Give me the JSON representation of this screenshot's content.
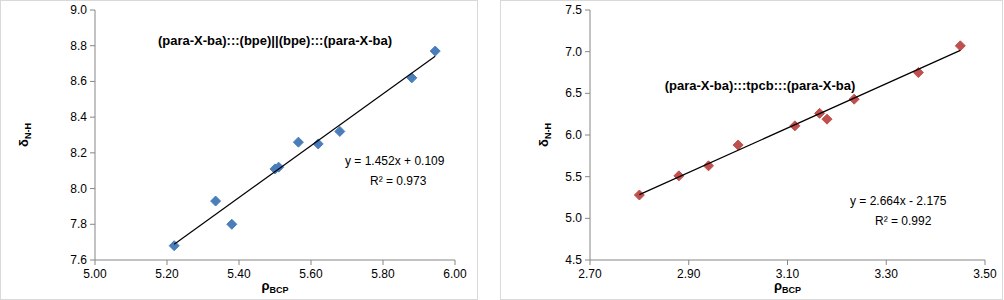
{
  "chart_data": [
    {
      "type": "scatter",
      "title": "(para-X-ba):::(bpe)||(bpe):::(para-X-ba)",
      "x_label": {
        "main": "ρ",
        "sub": "BCP"
      },
      "y_label": {
        "main": "δ",
        "sub": "N-H"
      },
      "annotations": [
        "y = 1.452x + 0.109",
        "R² = 0.973"
      ],
      "xlim": [
        5.0,
        6.0
      ],
      "xticks": [
        {
          "value": 5.0,
          "label": "5.00"
        },
        {
          "value": 5.2,
          "label": "5.20"
        },
        {
          "value": 5.4,
          "label": "5.40"
        },
        {
          "value": 5.6,
          "label": "5.60"
        },
        {
          "value": 5.8,
          "label": "5.80"
        },
        {
          "value": 6.0,
          "label": "6.00"
        }
      ],
      "ylim": [
        7.6,
        9.0
      ],
      "yticks": [
        7.6,
        7.8,
        {
          "value": 8.0,
          "label": "8.0"
        },
        8.2,
        8.4,
        8.6,
        8.8,
        {
          "value": 9.0,
          "label": "9.0"
        }
      ],
      "grid": false,
      "series": [
        {
          "type": "scatter",
          "marker": "diamond",
          "color": "#4a7ebb",
          "x": [
            5.22,
            5.335,
            5.38,
            5.5,
            5.51,
            5.565,
            5.62,
            5.68,
            5.88,
            5.945
          ],
          "values": [
            7.68,
            7.93,
            7.8,
            8.11,
            8.12,
            8.26,
            8.25,
            8.32,
            8.62,
            8.77
          ]
        },
        {
          "type": "line",
          "line_style": "solid",
          "color": "#000000",
          "x": [
            5.22,
            5.945
          ],
          "values": [
            7.688,
            8.741
          ]
        }
      ]
    },
    {
      "type": "scatter",
      "title": "(para-X-ba):::tpcb:::(para-X-ba)",
      "x_label": {
        "main": "ρ",
        "sub": "BCP"
      },
      "y_label": {
        "main": "δ",
        "sub": "N-H"
      },
      "annotations": [
        "y = 2.664x - 2.175",
        "R² = 0.992"
      ],
      "xlim": [
        2.7,
        3.5
      ],
      "xticks": [
        {
          "value": 2.7,
          "label": "2.70"
        },
        {
          "value": 2.9,
          "label": "2.90"
        },
        {
          "value": 3.1,
          "label": "3.10"
        },
        {
          "value": 3.3,
          "label": "3.30"
        },
        {
          "value": 3.5,
          "label": "3.50"
        }
      ],
      "ylim": [
        4.5,
        7.5
      ],
      "yticks": [
        4.5,
        {
          "value": 5.0,
          "label": "5.0"
        },
        5.5,
        {
          "value": 6.0,
          "label": "6.0"
        },
        6.5,
        {
          "value": 7.0,
          "label": "7.0"
        },
        7.5
      ],
      "grid": false,
      "series": [
        {
          "type": "scatter",
          "marker": "diamond",
          "color": "#c0504d",
          "x": [
            2.8,
            2.88,
            2.94,
            3.0,
            3.115,
            3.165,
            3.18,
            3.235,
            3.365,
            3.45
          ],
          "values": [
            5.28,
            5.51,
            5.63,
            5.88,
            6.11,
            6.26,
            6.19,
            6.43,
            6.75,
            7.07
          ]
        },
        {
          "type": "line",
          "line_style": "solid",
          "color": "#000000",
          "x": [
            2.8,
            3.45
          ],
          "values": [
            5.284,
            7.016
          ]
        }
      ]
    }
  ]
}
